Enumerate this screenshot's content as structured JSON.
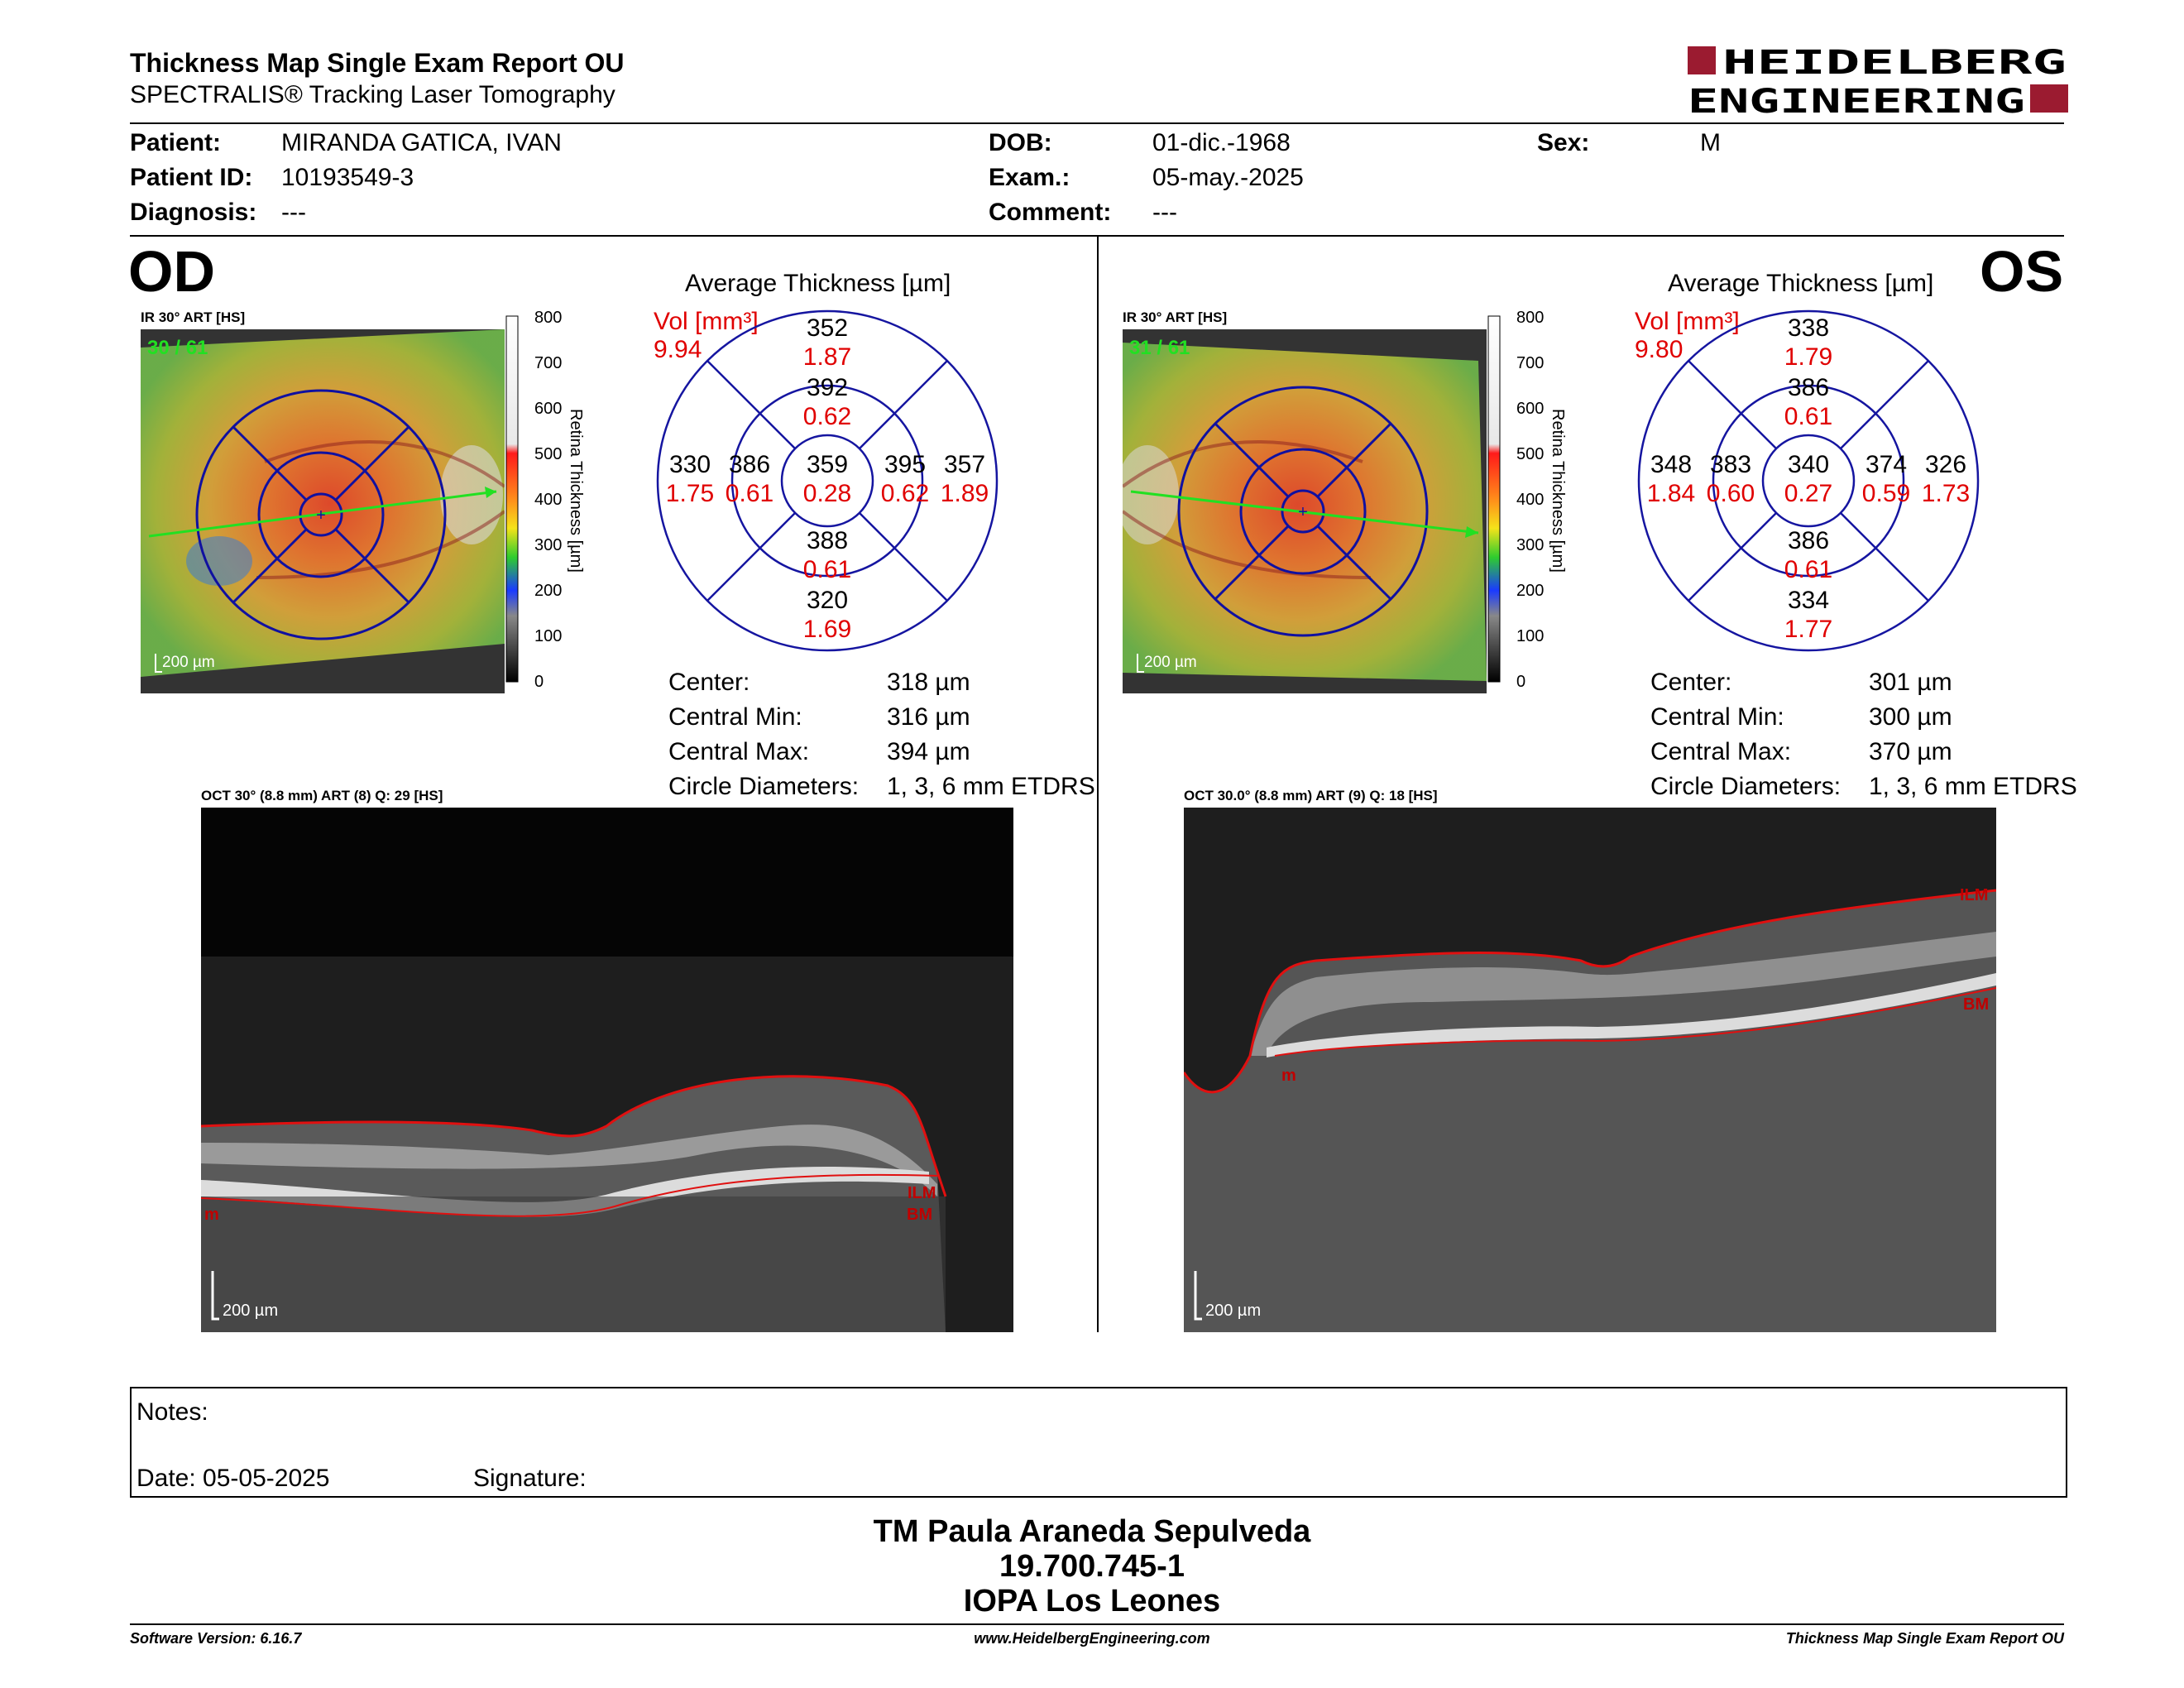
{
  "header": {
    "title": "Thickness Map Single Exam Report OU",
    "subtitle": "SPECTRALIS® Tracking Laser Tomography",
    "logo_line1": "HEIDELBERG",
    "logo_line2": "ENGINEERING"
  },
  "patient": {
    "patient_label": "Patient:",
    "patient_value": "MIRANDA GATICA, IVAN",
    "id_label": "Patient ID:",
    "id_value": "10193549-3",
    "diagnosis_label": "Diagnosis:",
    "diagnosis_value": "---",
    "dob_label": "DOB:",
    "dob_value": "01-dic.-1968",
    "exam_label": "Exam.:",
    "exam_value": "05-may.-2025",
    "comment_label": "Comment:",
    "comment_value": "---",
    "sex_label": "Sex:",
    "sex_value": "M"
  },
  "od": {
    "eye": "OD",
    "ir_caption": "IR 30° ART [HS]",
    "frame": "30 / 61",
    "scale": "200 µm",
    "colorbar_ticks": [
      "800",
      "700",
      "600",
      "500",
      "400",
      "300",
      "200",
      "100",
      "0"
    ],
    "colorbar_label": "Retina Thickness [µm]",
    "grid_title": "Average Thickness [µm]",
    "vol_label": "Vol [mm³]",
    "vol_value": "9.94",
    "sectors": {
      "outer_sup": {
        "t": "352",
        "v": "1.87"
      },
      "inner_sup": {
        "t": "392",
        "v": "0.62"
      },
      "outer_temp": {
        "t": "330",
        "v": "1.75"
      },
      "inner_temp": {
        "t": "386",
        "v": "0.61"
      },
      "center": {
        "t": "359",
        "v": "0.28"
      },
      "inner_nasal": {
        "t": "395",
        "v": "0.62"
      },
      "outer_nasal": {
        "t": "357",
        "v": "1.89"
      },
      "inner_inf": {
        "t": "388",
        "v": "0.61"
      },
      "outer_inf": {
        "t": "320",
        "v": "1.69"
      }
    },
    "stats": [
      {
        "label": "Center:",
        "value": "318 µm"
      },
      {
        "label": "Central Min:",
        "value": "316 µm"
      },
      {
        "label": "Central Max:",
        "value": "394 µm"
      },
      {
        "label": "Circle Diameters:",
        "value": "1, 3, 6 mm ETDRS"
      }
    ],
    "oct_caption": "OCT 30° (8.8 mm) ART (8) Q: 29 [HS]",
    "oct_scale": "200 µm",
    "labels": {
      "ilm": "ILM",
      "bm": "BM",
      "m": "m"
    }
  },
  "os": {
    "eye": "OS",
    "ir_caption": "IR 30° ART [HS]",
    "frame": "31 / 61",
    "scale": "200 µm",
    "colorbar_ticks": [
      "800",
      "700",
      "600",
      "500",
      "400",
      "300",
      "200",
      "100",
      "0"
    ],
    "colorbar_label": "Retina Thickness [µm]",
    "grid_title": "Average Thickness [µm]",
    "vol_label": "Vol [mm³]",
    "vol_value": "9.80",
    "sectors": {
      "outer_sup": {
        "t": "338",
        "v": "1.79"
      },
      "inner_sup": {
        "t": "386",
        "v": "0.61"
      },
      "outer_temp": {
        "t": "348",
        "v": "1.84"
      },
      "inner_temp": {
        "t": "383",
        "v": "0.60"
      },
      "center": {
        "t": "340",
        "v": "0.27"
      },
      "inner_nasal": {
        "t": "374",
        "v": "0.59"
      },
      "outer_nasal": {
        "t": "326",
        "v": "1.73"
      },
      "inner_inf": {
        "t": "386",
        "v": "0.61"
      },
      "outer_inf": {
        "t": "334",
        "v": "1.77"
      }
    },
    "stats": [
      {
        "label": "Center:",
        "value": "301 µm"
      },
      {
        "label": "Central Min:",
        "value": "300 µm"
      },
      {
        "label": "Central Max:",
        "value": "370 µm"
      },
      {
        "label": "Circle Diameters:",
        "value": "1, 3, 6 mm ETDRS"
      }
    ],
    "oct_caption": "OCT 30.0° (8.8 mm) ART (9) Q: 18 [HS]",
    "oct_scale": "200 µm",
    "labels": {
      "ilm": "ILM",
      "bm": "BM",
      "m": "m"
    }
  },
  "notes": {
    "notes_label": "Notes:",
    "date_label": "Date: 05-05-2025",
    "signature_label": "Signature:"
  },
  "signer": {
    "name": "TM Paula Araneda Sepulveda",
    "id": "19.700.745-1",
    "org": "IOPA Los Leones"
  },
  "footer": {
    "version": "Software Version: 6.16.7",
    "url": "www.HeidelbergEngineering.com",
    "report": "Thickness Map Single Exam Report OU"
  }
}
